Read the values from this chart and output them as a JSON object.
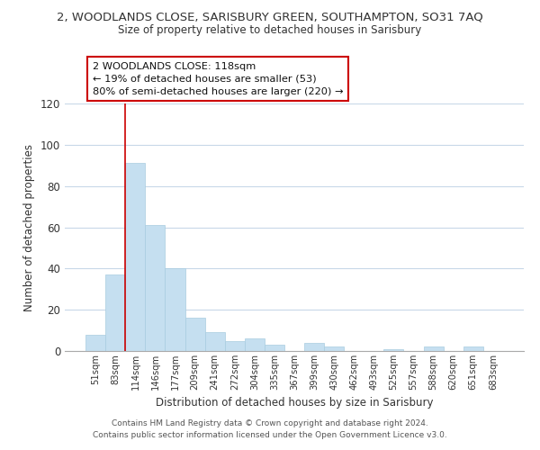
{
  "title_line1": "2, WOODLANDS CLOSE, SARISBURY GREEN, SOUTHAMPTON, SO31 7AQ",
  "title_line2": "Size of property relative to detached houses in Sarisbury",
  "xlabel": "Distribution of detached houses by size in Sarisbury",
  "ylabel": "Number of detached properties",
  "bar_labels": [
    "51sqm",
    "83sqm",
    "114sqm",
    "146sqm",
    "177sqm",
    "209sqm",
    "241sqm",
    "272sqm",
    "304sqm",
    "335sqm",
    "367sqm",
    "399sqm",
    "430sqm",
    "462sqm",
    "493sqm",
    "525sqm",
    "557sqm",
    "588sqm",
    "620sqm",
    "651sqm",
    "683sqm"
  ],
  "bar_heights": [
    8,
    37,
    91,
    61,
    40,
    16,
    9,
    5,
    6,
    3,
    0,
    4,
    2,
    0,
    0,
    1,
    0,
    2,
    0,
    2,
    0
  ],
  "bar_color": "#c5dff0",
  "bar_edge_color": "#a8cce0",
  "vline_x_index": 2,
  "vline_color": "#cc0000",
  "ylim": [
    0,
    120
  ],
  "yticks": [
    0,
    20,
    40,
    60,
    80,
    100,
    120
  ],
  "annotation_title": "2 WOODLANDS CLOSE: 118sqm",
  "annotation_line1": "← 19% of detached houses are smaller (53)",
  "annotation_line2": "80% of semi-detached houses are larger (220) →",
  "annotation_box_color": "#ffffff",
  "annotation_box_edge": "#cc0000",
  "footer_line1": "Contains HM Land Registry data © Crown copyright and database right 2024.",
  "footer_line2": "Contains public sector information licensed under the Open Government Licence v3.0.",
  "bg_color": "#ffffff",
  "grid_color": "#c8d8e8"
}
